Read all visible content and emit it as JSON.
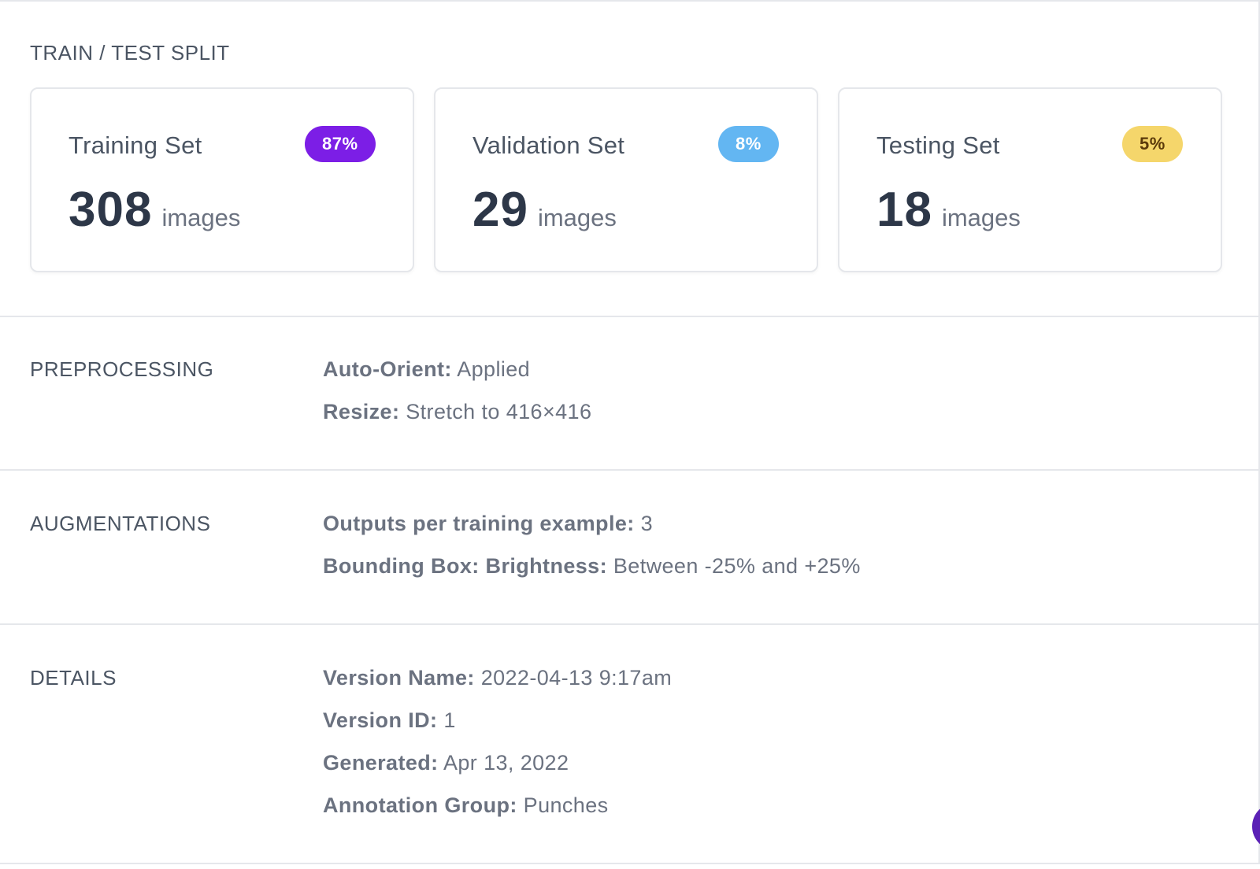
{
  "split": {
    "heading": "TRAIN / TEST SPLIT",
    "cards": [
      {
        "title": "Training Set",
        "percent": "87%",
        "count": "308",
        "unit": "images",
        "badge_bg": "#7c1ee6",
        "badge_fg": "#ffffff"
      },
      {
        "title": "Validation Set",
        "percent": "8%",
        "count": "29",
        "unit": "images",
        "badge_bg": "#63b6f2",
        "badge_fg": "#ffffff"
      },
      {
        "title": "Testing Set",
        "percent": "5%",
        "count": "18",
        "unit": "images",
        "badge_bg": "#f5d66b",
        "badge_fg": "#5b3a0a"
      }
    ]
  },
  "preprocessing": {
    "heading": "PREPROCESSING",
    "rows": [
      {
        "key": "Auto-Orient:",
        "value": "Applied"
      },
      {
        "key": "Resize:",
        "value": "Stretch to 416×416"
      }
    ]
  },
  "augmentations": {
    "heading": "AUGMENTATIONS",
    "rows": [
      {
        "key": "Outputs per training example:",
        "value": "3"
      },
      {
        "key": "Bounding Box: Brightness:",
        "value": "Between -25% and +25%"
      }
    ]
  },
  "details": {
    "heading": "DETAILS",
    "rows": [
      {
        "key": "Version Name:",
        "value": "2022-04-13 9:17am"
      },
      {
        "key": "Version ID:",
        "value": "1"
      },
      {
        "key": "Generated:",
        "value": "Apr 13, 2022"
      },
      {
        "key": "Annotation Group:",
        "value": "Punches"
      }
    ]
  },
  "colors": {
    "border": "#e5e7eb",
    "count_text": "#2d3748",
    "chat_button": "#5b21b6"
  }
}
